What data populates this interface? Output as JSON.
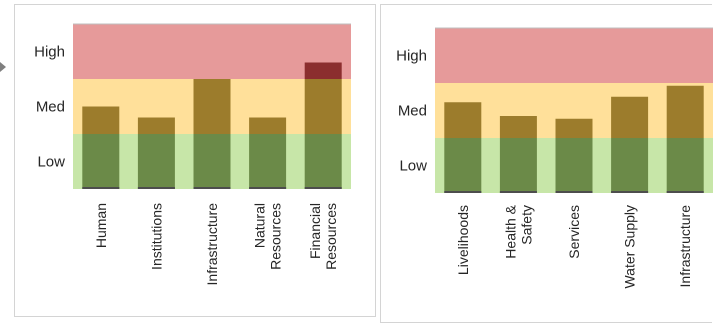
{
  "colors": {
    "high_band": "#e69a9a",
    "med_band": "#ffe09a",
    "low_band": "#c7e6a8",
    "bar_low": "#6b8a48",
    "bar_med": "#9c7c2c",
    "bar_high": "#8b2e2e",
    "baseline": "#4d4d4d"
  },
  "chart_data": [
    {
      "type": "bar",
      "title": "",
      "xlabel": "",
      "ylabel": "",
      "ylim": [
        0,
        3
      ],
      "bands": [
        {
          "label": "Low",
          "from": 0,
          "to": 1
        },
        {
          "label": "Med",
          "from": 1,
          "to": 2
        },
        {
          "label": "High",
          "from": 2,
          "to": 3
        }
      ],
      "categories": [
        "Human",
        "Institutions",
        "Infrastructure",
        "Natural Resources",
        "Financial Resources"
      ],
      "category_lines": [
        [
          "Human"
        ],
        [
          "Institutions"
        ],
        [
          "Infrastructure"
        ],
        [
          "Natural",
          "Resources"
        ],
        [
          "Financial",
          "Resources"
        ]
      ],
      "values": [
        1.5,
        1.3,
        2.0,
        1.3,
        2.3
      ]
    },
    {
      "type": "bar",
      "title": "",
      "xlabel": "",
      "ylabel": "",
      "ylim": [
        0,
        3
      ],
      "bands": [
        {
          "label": "Low",
          "from": 0,
          "to": 1
        },
        {
          "label": "Med",
          "from": 1,
          "to": 2
        },
        {
          "label": "High",
          "from": 2,
          "to": 3
        }
      ],
      "categories": [
        "Livelihoods",
        "Health & Safety",
        "Services",
        "Water Supply",
        "Infrastructure"
      ],
      "category_lines": [
        [
          "Livelihoods"
        ],
        [
          "Health &",
          "Safety"
        ],
        [
          "Services"
        ],
        [
          "Water Supply"
        ],
        [
          "Infrastructure"
        ]
      ],
      "values": [
        1.65,
        1.4,
        1.35,
        1.75,
        1.95
      ]
    }
  ]
}
